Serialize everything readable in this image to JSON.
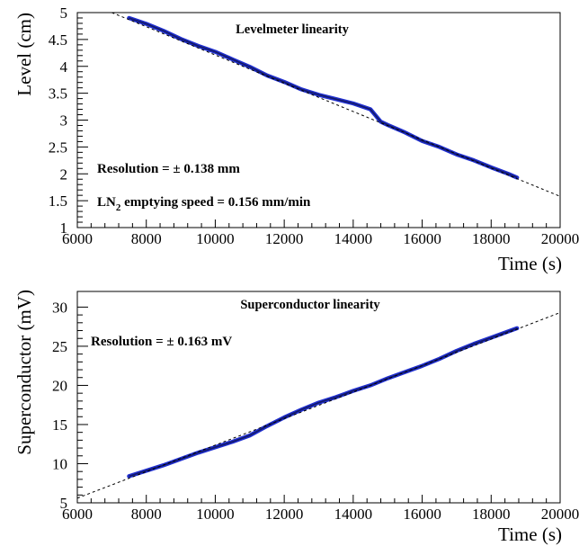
{
  "chart_data": [
    {
      "type": "line",
      "title": "Levelmeter linearity",
      "xlabel": "Time (s)",
      "ylabel": "Level (cm)",
      "xlim": [
        6000,
        20000
      ],
      "ylim": [
        1,
        5
      ],
      "x_ticks": [
        "6000",
        "8000",
        "10000",
        "12000",
        "14000",
        "16000",
        "18000",
        "20000"
      ],
      "y_ticks": [
        "1",
        "1.5",
        "2",
        "2.5",
        "3",
        "3.5",
        "4",
        "4.5",
        "5"
      ],
      "annotations": [
        "Resolution = ± 0.138 mm",
        "LN",
        "2",
        " emptying speed = 0.156 mm/min"
      ],
      "series": [
        {
          "color": "#1f2ecf",
          "x": [
            7500,
            8000,
            8500,
            9000,
            9500,
            10000,
            10500,
            11000,
            11500,
            12000,
            12500,
            13000,
            13500,
            14000,
            14500,
            14800,
            15000,
            15500,
            16000,
            16500,
            17000,
            17500,
            18000,
            18500,
            18750
          ],
          "y": [
            4.9,
            4.79,
            4.66,
            4.51,
            4.38,
            4.27,
            4.13,
            3.99,
            3.83,
            3.71,
            3.57,
            3.47,
            3.39,
            3.31,
            3.2,
            2.97,
            2.91,
            2.77,
            2.61,
            2.5,
            2.36,
            2.25,
            2.12,
            2.0,
            1.93
          ]
        },
        {
          "style": "dashed",
          "color": "#000000",
          "x": [
            7000,
            20000
          ],
          "y": [
            5.0,
            1.58
          ]
        }
      ]
    },
    {
      "type": "line",
      "title": "Superconductor linearity",
      "xlabel": "Time (s)",
      "ylabel": "Superconductor (mV)",
      "xlim": [
        6000,
        20000
      ],
      "ylim": [
        5,
        32
      ],
      "x_ticks": [
        "6000",
        "8000",
        "10000",
        "12000",
        "14000",
        "16000",
        "18000",
        "20000"
      ],
      "y_ticks": [
        "5",
        "10",
        "15",
        "20",
        "25",
        "30"
      ],
      "annotations": [
        "Resolution = ± 0.163 mV"
      ],
      "series": [
        {
          "color": "#1f2ecf",
          "x": [
            7500,
            8000,
            8500,
            9000,
            9500,
            10000,
            10500,
            11000,
            11500,
            12000,
            12500,
            13000,
            13500,
            14000,
            14500,
            15000,
            15500,
            16000,
            16500,
            17000,
            17500,
            18000,
            18500,
            18750
          ],
          "y": [
            8.4,
            9.1,
            9.8,
            10.6,
            11.4,
            12.1,
            12.8,
            13.6,
            14.8,
            15.9,
            16.9,
            17.8,
            18.5,
            19.3,
            20.0,
            20.9,
            21.7,
            22.5,
            23.4,
            24.4,
            25.3,
            26.1,
            26.9,
            27.3
          ]
        },
        {
          "style": "dashed",
          "color": "#000000",
          "x": [
            6000,
            20000
          ],
          "y": [
            5.6,
            29.3
          ]
        }
      ]
    }
  ]
}
